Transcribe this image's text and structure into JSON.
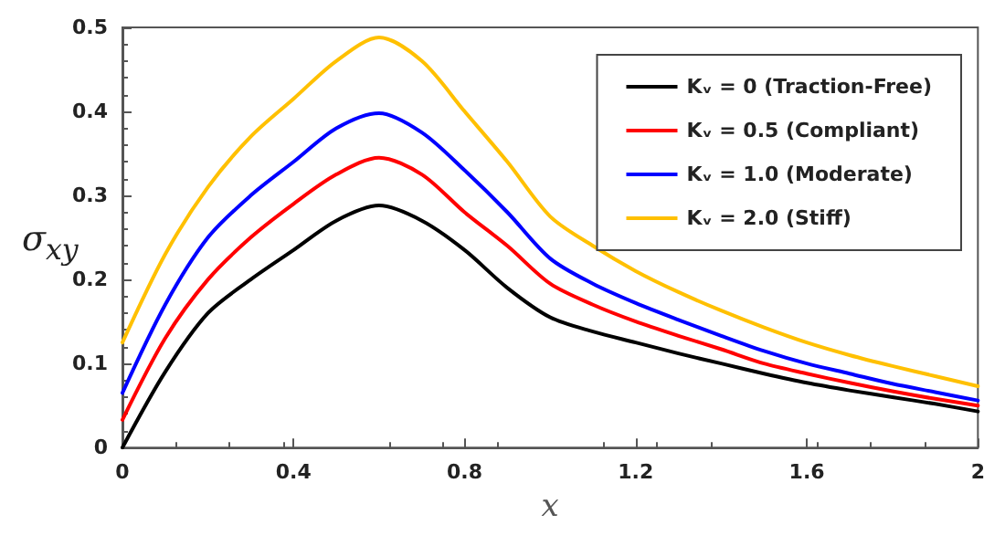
{
  "chart_data": {
    "type": "line",
    "xlabel": "x",
    "ylabel": "σ$_{xy}$",
    "x": [
      0,
      0.1,
      0.2,
      0.3,
      0.4,
      0.5,
      0.6,
      0.7,
      0.8,
      0.9,
      1.0,
      1.1,
      1.2,
      1.3,
      1.4,
      1.5,
      1.6,
      1.7,
      1.8,
      1.9,
      2.0
    ],
    "series": [
      {
        "name": "Kᵥ = 0 (Traction-Free)",
        "color": "#000000",
        "values": [
          0,
          0.09,
          0.16,
          0.2,
          0.235,
          0.27,
          0.288,
          0.27,
          0.235,
          0.19,
          0.155,
          0.138,
          0.125,
          0.112,
          0.1,
          0.088,
          0.077,
          0.068,
          0.06,
          0.052,
          0.043
        ]
      },
      {
        "name": "Kᵥ = 0.5 (Compliant)",
        "color": "#ff0000",
        "values": [
          0.033,
          0.13,
          0.2,
          0.25,
          0.29,
          0.325,
          0.345,
          0.325,
          0.28,
          0.24,
          0.195,
          0.17,
          0.15,
          0.133,
          0.117,
          0.1,
          0.088,
          0.077,
          0.067,
          0.058,
          0.05
        ]
      },
      {
        "name": "Kᵥ = 1.0 (Moderate)",
        "color": "#0000ff",
        "values": [
          0.065,
          0.17,
          0.25,
          0.3,
          0.34,
          0.38,
          0.398,
          0.375,
          0.33,
          0.28,
          0.225,
          0.195,
          0.172,
          0.152,
          0.133,
          0.115,
          0.1,
          0.088,
          0.076,
          0.066,
          0.056
        ]
      },
      {
        "name": "Kᵥ = 2.0 (Stiff)",
        "color": "#ffc000",
        "values": [
          0.125,
          0.23,
          0.31,
          0.37,
          0.415,
          0.46,
          0.488,
          0.46,
          0.4,
          0.34,
          0.275,
          0.24,
          0.21,
          0.185,
          0.163,
          0.143,
          0.125,
          0.11,
          0.097,
          0.085,
          0.073
        ]
      }
    ],
    "xlim": [
      0,
      2
    ],
    "xticks": [
      0,
      0.4,
      0.8,
      1.2,
      1.6,
      2
    ],
    "ylim": [
      0,
      0.5
    ],
    "yticks": [
      0,
      0.1,
      0.2,
      0.3,
      0.4,
      0.5
    ],
    "grid": false,
    "legend": "top right",
    "marker": "none",
    "line_style": "solid"
  }
}
